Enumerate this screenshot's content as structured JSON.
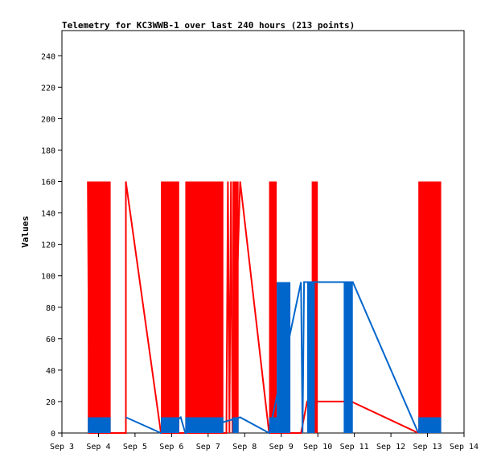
{
  "chart_data": {
    "type": "line",
    "title": "Telemetry for KC3WWB-1 over last 240 hours (213 points)",
    "ylabel": "Values",
    "xlabel": "",
    "ylim": [
      0,
      256
    ],
    "yticks": [
      0,
      20,
      40,
      60,
      80,
      100,
      120,
      140,
      160,
      180,
      200,
      220,
      240
    ],
    "xlim": [
      "2024-09-03",
      "2024-09-14"
    ],
    "xticks": [
      "Sep 3",
      "Sep 4",
      "Sep 5",
      "Sep 6",
      "Sep 7",
      "Sep 8",
      "Sep 9",
      "Sep 10",
      "Sep 11",
      "Sep 12",
      "Sep 13",
      "Sep 14"
    ],
    "grid": false,
    "series": [
      {
        "color": "#ff0000",
        "clusters": [
          {
            "from": "2024-09-03 17:00",
            "to": "2024-09-04 08:00",
            "low": 0,
            "high": 160
          },
          {
            "from": "2024-09-05 17:00",
            "to": "2024-09-06 05:00",
            "low": 0,
            "high": 160
          },
          {
            "from": "2024-09-06 09:00",
            "to": "2024-09-07 10:00",
            "low": 0,
            "high": 160
          },
          {
            "from": "2024-09-07 16:00",
            "to": "2024-09-07 20:00",
            "low": 0,
            "high": 160
          },
          {
            "from": "2024-09-08 16:00",
            "to": "2024-09-08 21:00",
            "low": 0,
            "high": 160
          },
          {
            "from": "2024-09-09 20:00",
            "to": "2024-09-10 00:00",
            "low": 0,
            "high": 160
          },
          {
            "from": "2024-09-12 18:00",
            "to": "2024-09-13 09:00",
            "low": 0,
            "high": 160
          }
        ],
        "lines": [
          {
            "x": "2024-09-03 17:00",
            "y": 160
          },
          {
            "x": "2024-09-03 18:00",
            "y": 0
          },
          {
            "x": "2024-09-04 18:00",
            "y": 0
          },
          {
            "x": "2024-09-04 18:00",
            "y": 160
          },
          {
            "x": "2024-09-05 17:00",
            "y": 0
          },
          {
            "x": "2024-09-07 12:00",
            "y": 0
          },
          {
            "x": "2024-09-07 13:00",
            "y": 160
          },
          {
            "x": "2024-09-07 14:00",
            "y": 0
          },
          {
            "x": "2024-09-07 15:00",
            "y": 160
          },
          {
            "x": "2024-09-07 16:00",
            "y": 0
          },
          {
            "x": "2024-09-07 21:00",
            "y": 160
          },
          {
            "x": "2024-09-08 16:00",
            "y": 0
          },
          {
            "x": "2024-09-09 13:00",
            "y": 0
          },
          {
            "x": "2024-09-09 17:00",
            "y": 20
          },
          {
            "x": "2024-09-10 22:00",
            "y": 20
          },
          {
            "x": "2024-09-12 18:00",
            "y": 0
          }
        ]
      },
      {
        "color": "#0066cc",
        "clusters": [
          {
            "from": "2024-09-03 17:00",
            "to": "2024-09-04 08:00",
            "low": 0,
            "high": 10
          },
          {
            "from": "2024-09-05 17:00",
            "to": "2024-09-06 05:00",
            "low": 0,
            "high": 10
          },
          {
            "from": "2024-09-06 09:00",
            "to": "2024-09-07 10:00",
            "low": 0,
            "high": 10
          },
          {
            "from": "2024-09-07 16:00",
            "to": "2024-09-07 20:00",
            "low": 0,
            "high": 10
          },
          {
            "from": "2024-09-08 16:00",
            "to": "2024-09-08 21:00",
            "low": 0,
            "high": 10
          },
          {
            "from": "2024-09-08 21:00",
            "to": "2024-09-09 06:00",
            "low": 0,
            "high": 96
          },
          {
            "from": "2024-09-09 17:00",
            "to": "2024-09-09 22:00",
            "low": 0,
            "high": 96
          },
          {
            "from": "2024-09-10 17:00",
            "to": "2024-09-10 23:00",
            "low": 0,
            "high": 96
          },
          {
            "from": "2024-09-12 18:00",
            "to": "2024-09-13 09:00",
            "low": 0,
            "high": 10
          }
        ],
        "lines": [
          {
            "x": "2024-09-04 18:00",
            "y": 10
          },
          {
            "x": "2024-09-05 17:00",
            "y": 0
          },
          {
            "x": "2024-09-06 06:00",
            "y": 10
          },
          {
            "x": "2024-09-06 09:00",
            "y": 0
          },
          {
            "x": "2024-09-07 21:00",
            "y": 10
          },
          {
            "x": "2024-09-08 16:00",
            "y": 0
          },
          {
            "x": "2024-09-09 13:00",
            "y": 96
          },
          {
            "x": "2024-09-09 14:00",
            "y": 0
          },
          {
            "x": "2024-09-09 15:00",
            "y": 96
          },
          {
            "x": "2024-09-10 17:00",
            "y": 96
          },
          {
            "x": "2024-09-10 23:00",
            "y": 96
          },
          {
            "x": "2024-09-12 18:00",
            "y": 0
          }
        ]
      }
    ]
  }
}
